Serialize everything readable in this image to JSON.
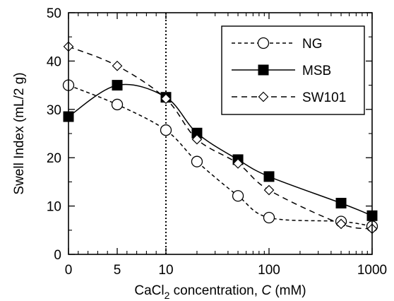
{
  "chart_data": {
    "type": "line",
    "title": "",
    "xlabel": {
      "main": "CaCl",
      "subscript": "2",
      "rest": " concentration, ",
      "var": "C",
      "unit": " (mM)"
    },
    "ylabel": "Swell Index (mL/2 g)",
    "x_scale": "linear from 0 to 10 mM, logarithmic from 10 to 1000 mM",
    "x_ticks": [
      {
        "value": 0,
        "label": "0"
      },
      {
        "value": 5,
        "label": "5"
      },
      {
        "value": 10,
        "label": "10"
      },
      {
        "value": 100,
        "label": "100"
      },
      {
        "value": 1000,
        "label": "1000"
      }
    ],
    "ylim": [
      0,
      50
    ],
    "y_ticks": [
      0,
      10,
      20,
      30,
      40,
      50
    ],
    "reference_line": {
      "x": 10,
      "style": "dotted vertical"
    },
    "grid": false,
    "legend_position": "top-right",
    "series": [
      {
        "name": "NG",
        "marker": "open-circle",
        "line_style": "short-dashed",
        "x": [
          0,
          5,
          10,
          20,
          50,
          100,
          500,
          1000
        ],
        "y": [
          35.0,
          31.0,
          25.7,
          19.2,
          12.1,
          7.6,
          6.8,
          5.8
        ]
      },
      {
        "name": "MSB",
        "marker": "filled-square",
        "line_style": "solid",
        "x": [
          0,
          5,
          10,
          20,
          50,
          100,
          500,
          1000
        ],
        "y": [
          28.5,
          35.0,
          32.5,
          25.1,
          19.6,
          16.1,
          10.6,
          8.0
        ]
      },
      {
        "name": "SW101",
        "marker": "open-diamond",
        "line_style": "long-dashed",
        "x": [
          0,
          5,
          10,
          20,
          50,
          100,
          500,
          1000
        ],
        "y": [
          43.0,
          39.0,
          32.2,
          23.8,
          18.8,
          13.3,
          6.3,
          5.3
        ]
      }
    ]
  }
}
